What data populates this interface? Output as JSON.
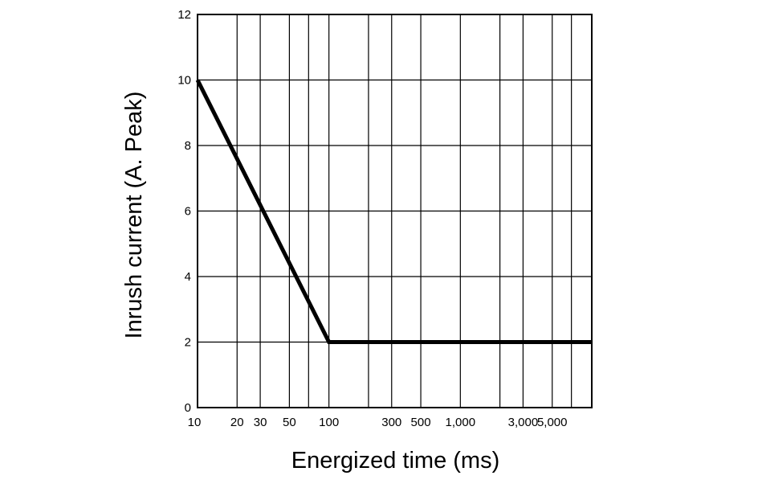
{
  "chart_data": {
    "type": "line",
    "title": "",
    "xlabel": "Energized time (ms)",
    "ylabel": "Inrush current (A. Peak)",
    "x_scale": "log",
    "xlim": [
      10,
      10000
    ],
    "ylim": [
      0,
      12
    ],
    "grid": true,
    "x_tick_labels": [
      {
        "value": 10,
        "label": "10"
      },
      {
        "value": 20,
        "label": "20"
      },
      {
        "value": 30,
        "label": "30"
      },
      {
        "value": 50,
        "label": "50"
      },
      {
        "value": 100,
        "label": "100"
      },
      {
        "value": 300,
        "label": "300"
      },
      {
        "value": 500,
        "label": "500"
      },
      {
        "value": 1000,
        "label": "1,000"
      },
      {
        "value": 3000,
        "label": "3,000"
      },
      {
        "value": 5000,
        "label": "5,000"
      }
    ],
    "x_gridlines": [
      10,
      20,
      30,
      50,
      70,
      100,
      200,
      300,
      500,
      1000,
      2000,
      3000,
      5000,
      7000,
      10000
    ],
    "y_ticks": [
      0,
      2,
      4,
      6,
      8,
      10,
      12
    ],
    "series": [
      {
        "x": [
          10,
          100,
          10000
        ],
        "y": [
          10,
          2,
          2
        ]
      }
    ],
    "colors": {
      "line": "#000000",
      "grid": "#000000",
      "background": "#ffffff"
    }
  }
}
